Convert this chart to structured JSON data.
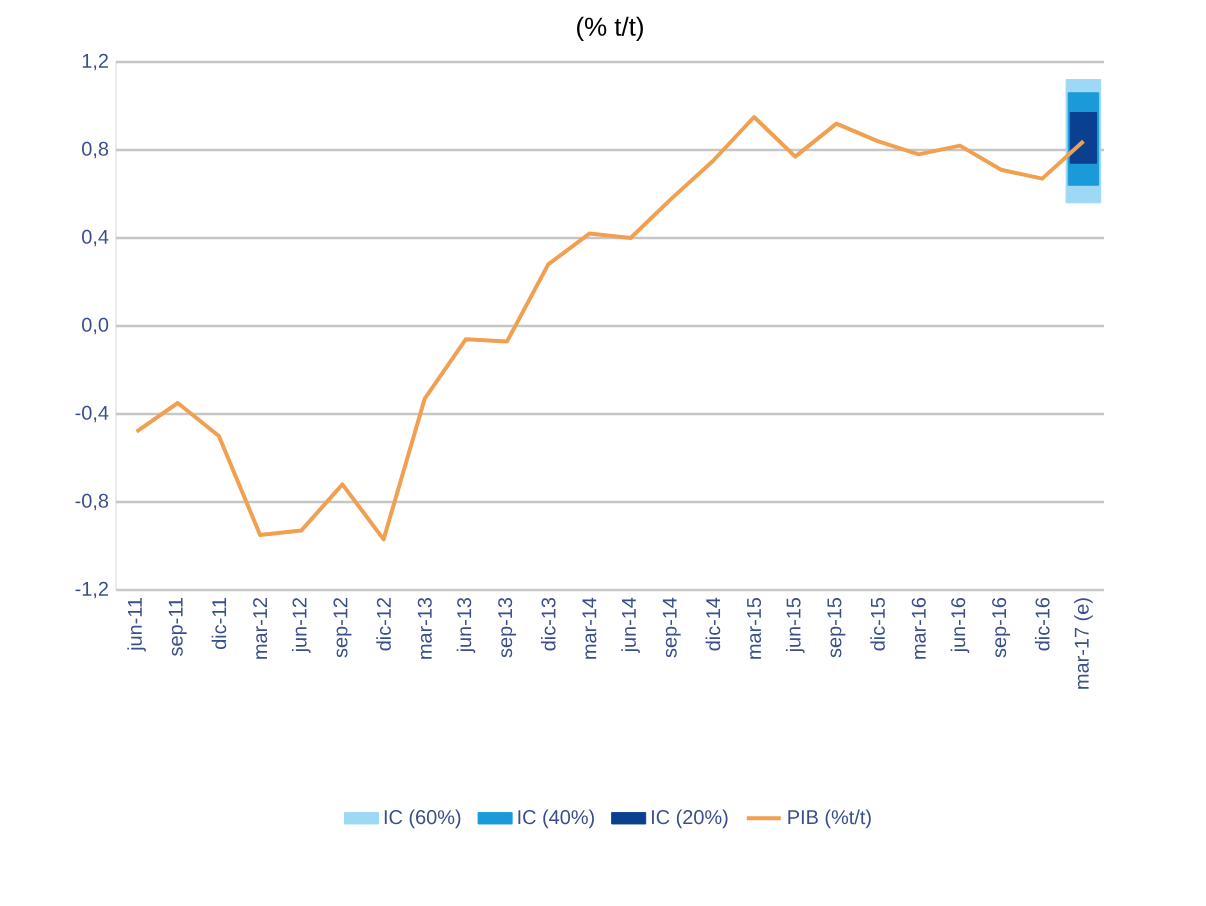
{
  "chart_data": {
    "type": "line",
    "title": "(% t/t)",
    "categories": [
      "jun-11",
      "sep-11",
      "dic-11",
      "mar-12",
      "jun-12",
      "sep-12",
      "dic-12",
      "mar-13",
      "jun-13",
      "sep-13",
      "dic-13",
      "mar-14",
      "jun-14",
      "sep-14",
      "dic-14",
      "mar-15",
      "jun-15",
      "sep-15",
      "dic-15",
      "mar-16",
      "jun-16",
      "sep-16",
      "dic-16",
      "mar-17 (e)"
    ],
    "series": [
      {
        "name": "IC (60%)",
        "type": "bar",
        "color": "#9dd8f5",
        "base": [
          null,
          null,
          null,
          null,
          null,
          null,
          null,
          null,
          null,
          null,
          null,
          null,
          null,
          null,
          null,
          null,
          null,
          null,
          null,
          null,
          null,
          null,
          null,
          0.56
        ],
        "values": [
          null,
          null,
          null,
          null,
          null,
          null,
          null,
          null,
          null,
          null,
          null,
          null,
          null,
          null,
          null,
          null,
          null,
          null,
          null,
          null,
          null,
          null,
          null,
          0.56
        ]
      },
      {
        "name": "IC (40%)",
        "type": "bar",
        "color": "#1a9ad9",
        "base": [
          null,
          null,
          null,
          null,
          null,
          null,
          null,
          null,
          null,
          null,
          null,
          null,
          null,
          null,
          null,
          null,
          null,
          null,
          null,
          null,
          null,
          null,
          null,
          0.64
        ],
        "values": [
          null,
          null,
          null,
          null,
          null,
          null,
          null,
          null,
          null,
          null,
          null,
          null,
          null,
          null,
          null,
          null,
          null,
          null,
          null,
          null,
          null,
          null,
          null,
          0.42
        ]
      },
      {
        "name": "IC (20%)",
        "type": "bar",
        "color": "#0b3f8f",
        "base": [
          null,
          null,
          null,
          null,
          null,
          null,
          null,
          null,
          null,
          null,
          null,
          null,
          null,
          null,
          null,
          null,
          null,
          null,
          null,
          null,
          null,
          null,
          null,
          0.74
        ],
        "values": [
          null,
          null,
          null,
          null,
          null,
          null,
          null,
          null,
          null,
          null,
          null,
          null,
          null,
          null,
          null,
          null,
          null,
          null,
          null,
          null,
          null,
          null,
          null,
          0.23
        ]
      },
      {
        "name": "PIB (%t/t)",
        "color": "#f0a050",
        "values": [
          -0.48,
          -0.35,
          -0.5,
          -0.95,
          -0.93,
          -0.72,
          -0.97,
          -0.33,
          -0.06,
          -0.07,
          0.28,
          0.42,
          0.4,
          0.58,
          0.75,
          0.95,
          0.77,
          0.92,
          0.84,
          0.78,
          0.82,
          0.71,
          0.67,
          0.84
        ]
      }
    ],
    "ylim": [
      -1.2,
      1.2
    ],
    "yticks": [
      {
        "value": -1.2,
        "label": "-1,2"
      },
      {
        "value": -0.8,
        "label": "-0,8"
      },
      {
        "value": -0.4,
        "label": "-0,4"
      },
      {
        "value": 0.0,
        "label": "0,0"
      },
      {
        "value": 0.4,
        "label": "0,4"
      },
      {
        "value": 0.8,
        "label": "0,8"
      },
      {
        "value": 1.2,
        "label": "1,2"
      }
    ],
    "grid": "y",
    "legend": "bottom",
    "marker": "none",
    "line_style": "solid"
  }
}
